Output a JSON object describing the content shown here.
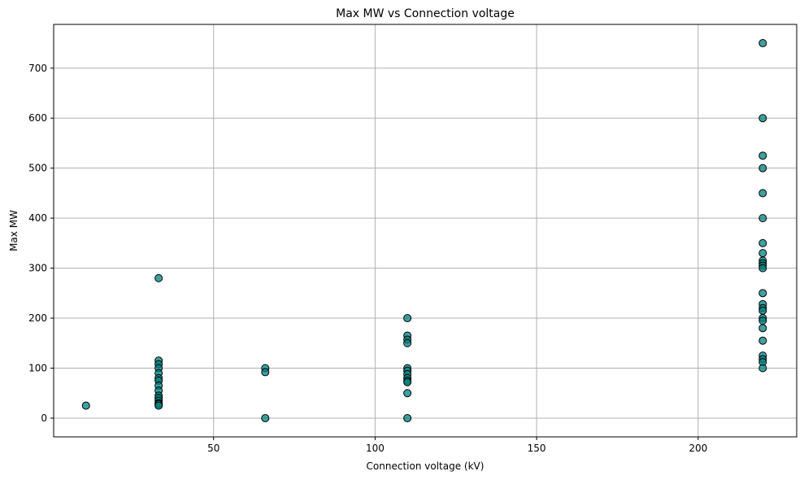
{
  "chart_data": {
    "type": "scatter",
    "title": "Max MW vs Connection voltage",
    "xlabel": "Connection voltage (kV)",
    "ylabel": "Max MW",
    "xlim": [
      0.5,
      230.5
    ],
    "ylim": [
      -37.5,
      787.5
    ],
    "xticks": [
      50,
      100,
      150,
      200
    ],
    "yticks": [
      0,
      100,
      200,
      300,
      400,
      500,
      600,
      700
    ],
    "grid": true,
    "marker_color": "#008080",
    "marker_edge_color": "#000000",
    "points": [
      [
        10.5,
        25
      ],
      [
        33,
        280
      ],
      [
        33,
        115
      ],
      [
        33,
        108
      ],
      [
        33,
        100
      ],
      [
        33,
        90
      ],
      [
        33,
        80
      ],
      [
        33,
        75
      ],
      [
        33,
        65
      ],
      [
        33,
        55
      ],
      [
        33,
        45
      ],
      [
        33,
        40
      ],
      [
        33,
        35
      ],
      [
        33,
        30
      ],
      [
        33,
        28
      ],
      [
        33,
        25
      ],
      [
        66,
        100
      ],
      [
        66,
        92
      ],
      [
        66,
        0
      ],
      [
        110,
        200
      ],
      [
        110,
        165
      ],
      [
        110,
        157
      ],
      [
        110,
        150
      ],
      [
        110,
        100
      ],
      [
        110,
        95
      ],
      [
        110,
        88
      ],
      [
        110,
        80
      ],
      [
        110,
        75
      ],
      [
        110,
        72
      ],
      [
        110,
        50
      ],
      [
        110,
        0
      ],
      [
        220,
        750
      ],
      [
        220,
        600
      ],
      [
        220,
        525
      ],
      [
        220,
        500
      ],
      [
        220,
        450
      ],
      [
        220,
        400
      ],
      [
        220,
        350
      ],
      [
        220,
        330
      ],
      [
        220,
        315
      ],
      [
        220,
        310
      ],
      [
        220,
        305
      ],
      [
        220,
        300
      ],
      [
        220,
        250
      ],
      [
        220,
        228
      ],
      [
        220,
        220
      ],
      [
        220,
        215
      ],
      [
        220,
        200
      ],
      [
        220,
        195
      ],
      [
        220,
        180
      ],
      [
        220,
        155
      ],
      [
        220,
        125
      ],
      [
        220,
        118
      ],
      [
        220,
        112
      ],
      [
        220,
        100
      ]
    ]
  }
}
